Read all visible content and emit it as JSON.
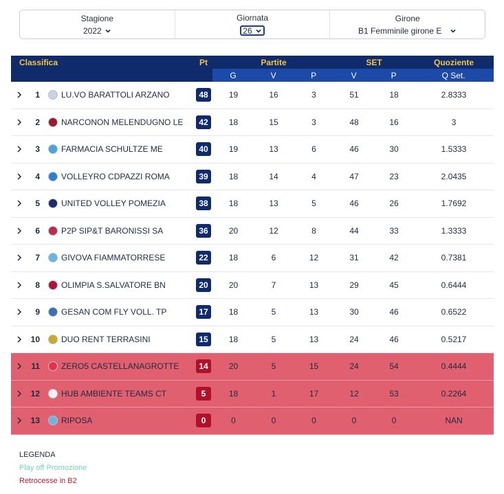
{
  "filters": {
    "stagione": {
      "label": "Stagione",
      "value": "2022"
    },
    "giornata": {
      "label": "Giornata",
      "value": "26"
    },
    "girone": {
      "label": "Girone",
      "value": "B1 Femminile girone E"
    }
  },
  "table": {
    "headers": {
      "classifica": "Classifica",
      "pt": "Pt",
      "partite": "Partite",
      "set": "SET",
      "quoziente": "Quoziente",
      "g": "G",
      "v": "V",
      "p": "P",
      "set_v": "V",
      "set_p": "P",
      "qset": "Q Set."
    },
    "rows": [
      {
        "pos": "1",
        "team": "LU.VO BARATTOLI ARZANO",
        "pt": "48",
        "g": "19",
        "v": "16",
        "p": "3",
        "sv": "51",
        "sp": "18",
        "q": "2.8333",
        "logo_color": "#c8d3e6",
        "relegation": false
      },
      {
        "pos": "2",
        "team": "NARCONON MELENDUGNO LE",
        "pt": "42",
        "g": "18",
        "v": "15",
        "p": "3",
        "sv": "48",
        "sp": "16",
        "q": "3",
        "logo_color": "#9b1b2a",
        "relegation": false
      },
      {
        "pos": "3",
        "team": "FARMACIA SCHULTZE ME",
        "pt": "40",
        "g": "19",
        "v": "13",
        "p": "6",
        "sv": "46",
        "sp": "30",
        "q": "1.5333",
        "logo_color": "#4aa6d8",
        "relegation": false
      },
      {
        "pos": "4",
        "team": "VOLLEYRO CDPAZZI ROMA",
        "pt": "39",
        "g": "18",
        "v": "14",
        "p": "4",
        "sv": "47",
        "sp": "23",
        "q": "2.0435",
        "logo_color": "#2f7fd0",
        "relegation": false
      },
      {
        "pos": "5",
        "team": "UNITED VOLLEY POMEZIA",
        "pt": "38",
        "g": "18",
        "v": "13",
        "p": "5",
        "sv": "46",
        "sp": "26",
        "q": "1.7692",
        "logo_color": "#1f2a6b",
        "relegation": false
      },
      {
        "pos": "6",
        "team": "P2P SIP&T BARONISSI SA",
        "pt": "36",
        "g": "20",
        "v": "12",
        "p": "8",
        "sv": "44",
        "sp": "33",
        "q": "1.3333",
        "logo_color": "#c2284a",
        "relegation": false
      },
      {
        "pos": "7",
        "team": "GIVOVA FIAMMATORRESE",
        "pt": "22",
        "g": "18",
        "v": "6",
        "p": "12",
        "sv": "31",
        "sp": "42",
        "q": "0.7381",
        "logo_color": "#6bb4e0",
        "relegation": false
      },
      {
        "pos": "8",
        "team": "OLIMPIA S.SALVATORE BN",
        "pt": "20",
        "g": "20",
        "v": "7",
        "p": "13",
        "sv": "29",
        "sp": "45",
        "q": "0.6444",
        "logo_color": "#b0123a",
        "relegation": false
      },
      {
        "pos": "9",
        "team": "GESAN COM FLY VOLL. TP",
        "pt": "17",
        "g": "18",
        "v": "5",
        "p": "13",
        "sv": "30",
        "sp": "46",
        "q": "0.6522",
        "logo_color": "#3d6fb0",
        "relegation": false
      },
      {
        "pos": "10",
        "team": "DUO RENT TERRASINI",
        "pt": "15",
        "g": "18",
        "v": "5",
        "p": "13",
        "sv": "24",
        "sp": "46",
        "q": "0.5217",
        "logo_color": "#c9a82a",
        "relegation": false
      },
      {
        "pos": "11",
        "team": "ZERO5 CASTELLANAGROTTE",
        "pt": "14",
        "g": "20",
        "v": "5",
        "p": "15",
        "sv": "24",
        "sp": "54",
        "q": "0.4444",
        "logo_color": "#e8304a",
        "relegation": true
      },
      {
        "pos": "12",
        "team": "HUB AMBIENTE TEAMS CT",
        "pt": "5",
        "g": "18",
        "v": "1",
        "p": "17",
        "sv": "12",
        "sp": "53",
        "q": "0.2264",
        "logo_color": "#f1f1f1",
        "relegation": true
      },
      {
        "pos": "13",
        "team": "RIPOSA",
        "pt": "0",
        "g": "0",
        "v": "0",
        "p": "0",
        "sv": "0",
        "sp": "0",
        "q": "NAN",
        "logo_color": "#6bb4e0",
        "relegation": true
      }
    ]
  },
  "legend": {
    "title": "LEGENDA",
    "promo": "Play off Promozione",
    "retro": "Retrocesse in B2"
  },
  "colors": {
    "header_bg": "#0f2b6b",
    "header_accent": "#f2c542",
    "relegation_bg": "#e0606f",
    "promo_text": "#6fd8b3",
    "retro_text": "#c0182c"
  }
}
